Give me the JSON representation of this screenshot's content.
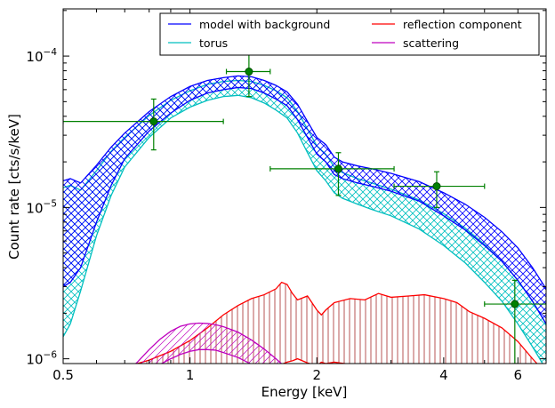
{
  "chart_data": {
    "type": "line",
    "xlabel": "Energy [keV]",
    "ylabel": "Count rate [cts/s/keV]",
    "xscale": "log",
    "yscale": "log",
    "xlim": [
      0.5,
      7.0
    ],
    "ylim": [
      9.3e-07,
      0.000205
    ],
    "x_ticks": [
      {
        "value": 0.5,
        "label": "0.5"
      },
      {
        "value": 1,
        "label": "1"
      },
      {
        "value": 2,
        "label": "2"
      },
      {
        "value": 4,
        "label": "4"
      },
      {
        "value": 6,
        "label": "6"
      }
    ],
    "y_ticks": [
      {
        "value": 1e-06,
        "base": "10",
        "exp": "−6"
      },
      {
        "value": 1e-05,
        "base": "10",
        "exp": "−5"
      },
      {
        "value": 0.0001,
        "base": "10",
        "exp": "−4"
      }
    ],
    "grid": false,
    "legend": {
      "placement": "top-right",
      "columns": 2,
      "entries": [
        {
          "label": "model with background",
          "color": "#0000ff"
        },
        {
          "label": "reflection component",
          "color": "#ff0000"
        },
        {
          "label": "torus",
          "color": "#00bfbf"
        },
        {
          "label": "scattering",
          "color": "#bf00bf"
        }
      ]
    },
    "colors": {
      "model": "#0000ff",
      "torus": "#00bfbf",
      "reflection": "#ff0000",
      "reflection_hatch": "#a52a2a",
      "scattering": "#bf00bf",
      "data": "#008000",
      "data_edge": "#004d00"
    },
    "data_points": [
      {
        "x": 0.82,
        "xlo": 0.5,
        "xhi": 1.2,
        "y": 3.7e-05,
        "ylo": 2.4e-05,
        "yhi": 5.2e-05
      },
      {
        "x": 1.38,
        "xlo": 1.22,
        "xhi": 1.55,
        "y": 7.9e-05,
        "ylo": 5.4e-05,
        "yhi": 0.000105
      },
      {
        "x": 2.25,
        "xlo": 1.55,
        "xhi": 3.05,
        "y": 1.8e-05,
        "ylo": 1.2e-05,
        "yhi": 2.3e-05
      },
      {
        "x": 3.85,
        "xlo": 3.05,
        "xhi": 5.0,
        "y": 1.38e-05,
        "ylo": 1e-05,
        "yhi": 1.72e-05
      },
      {
        "x": 5.9,
        "xlo": 5.0,
        "xhi": 7.0,
        "y": 2.3e-06,
        "ylo": 9.3e-07,
        "yhi": 3.3e-06
      }
    ],
    "series": [
      {
        "name": "model with background",
        "x": [
          0.5,
          0.52,
          0.55,
          0.6,
          0.65,
          0.7,
          0.8,
          0.9,
          1.0,
          1.1,
          1.2,
          1.3,
          1.4,
          1.5,
          1.6,
          1.7,
          1.8,
          1.9,
          2.0,
          2.1,
          2.2,
          2.3,
          2.5,
          2.7,
          3.0,
          3.5,
          4.0,
          4.5,
          5.0,
          5.5,
          6.0,
          6.5,
          7.0
        ],
        "lower": [
          3e-06,
          3.2e-06,
          4e-06,
          8e-06,
          1.4e-05,
          2.1e-05,
          3.2e-05,
          4.2e-05,
          5.1e-05,
          5.7e-05,
          6e-05,
          6.2e-05,
          6.1e-05,
          5.7e-05,
          5.2e-05,
          4.7e-05,
          3.8e-05,
          2.9e-05,
          2.25e-05,
          2e-05,
          1.65e-05,
          1.55e-05,
          1.45e-05,
          1.38e-05,
          1.28e-05,
          1.1e-05,
          8.8e-06,
          7.1e-06,
          5.6e-06,
          4.4e-06,
          3.3e-06,
          2.4e-06,
          1.7e-06
        ],
        "upper": [
          1.5e-05,
          1.55e-05,
          1.45e-05,
          1.9e-05,
          2.5e-05,
          3.1e-05,
          4.3e-05,
          5.4e-05,
          6.3e-05,
          6.9e-05,
          7.2e-05,
          7.4e-05,
          7.3e-05,
          6.9e-05,
          6.4e-05,
          5.8e-05,
          4.8e-05,
          3.7e-05,
          2.9e-05,
          2.6e-05,
          2.15e-05,
          2e-05,
          1.88e-05,
          1.8e-05,
          1.68e-05,
          1.48e-05,
          1.25e-05,
          1.05e-05,
          8.6e-06,
          6.9e-06,
          5.4e-06,
          4e-06,
          2.9e-06
        ]
      },
      {
        "name": "torus",
        "x": [
          0.5,
          0.52,
          0.55,
          0.6,
          0.65,
          0.7,
          0.8,
          0.9,
          1.0,
          1.1,
          1.2,
          1.3,
          1.4,
          1.5,
          1.6,
          1.7,
          1.8,
          1.9,
          2.0,
          2.1,
          2.2,
          2.3,
          2.5,
          2.7,
          3.0,
          3.5,
          4.0,
          4.5,
          5.0,
          5.5,
          6.0,
          6.5,
          7.0
        ],
        "lower": [
          1.4e-06,
          1.7e-06,
          2.8e-06,
          6.5e-06,
          1.2e-05,
          1.85e-05,
          2.9e-05,
          3.9e-05,
          4.6e-05,
          5.1e-05,
          5.4e-05,
          5.5e-05,
          5.3e-05,
          4.9e-05,
          4.4e-05,
          3.9e-05,
          3.1e-05,
          2.3e-05,
          1.75e-05,
          1.5e-05,
          1.25e-05,
          1.15e-05,
          1.05e-05,
          9.7e-06,
          8.8e-06,
          7.2e-06,
          5.6e-06,
          4.3e-06,
          3.2e-06,
          2.4e-06,
          1.7e-06,
          1.2e-06,
          8.5e-07
        ],
        "upper": [
          1.35e-05,
          1.4e-05,
          1.3e-05,
          1.75e-05,
          2.35e-05,
          2.9e-05,
          4.05e-05,
          5.1e-05,
          5.9e-05,
          6.5e-05,
          6.8e-05,
          6.9e-05,
          6.8e-05,
          6.4e-05,
          5.9e-05,
          5.3e-05,
          4.3e-05,
          3.3e-05,
          2.55e-05,
          2.25e-05,
          1.85e-05,
          1.7e-05,
          1.55e-05,
          1.45e-05,
          1.32e-05,
          1.12e-05,
          9.1e-06,
          7.3e-06,
          5.7e-06,
          4.4e-06,
          3.3e-06,
          2.4e-06,
          1.7e-06
        ]
      },
      {
        "name": "reflection component",
        "x": [
          0.75,
          0.8,
          0.9,
          1.0,
          1.1,
          1.2,
          1.3,
          1.4,
          1.5,
          1.6,
          1.65,
          1.7,
          1.75,
          1.8,
          1.9,
          2.0,
          2.05,
          2.1,
          2.2,
          2.4,
          2.6,
          2.8,
          3.0,
          3.3,
          3.6,
          4.0,
          4.3,
          4.6,
          5.0,
          5.5,
          6.0,
          6.5,
          7.0
        ],
        "upper": [
          9.3e-07,
          9.8e-07,
          1.12e-06,
          1.32e-06,
          1.6e-06,
          1.95e-06,
          2.25e-06,
          2.5e-06,
          2.65e-06,
          2.9e-06,
          3.2e-06,
          3.1e-06,
          2.7e-06,
          2.45e-06,
          2.6e-06,
          2.1e-06,
          1.95e-06,
          2.1e-06,
          2.35e-06,
          2.5e-06,
          2.45e-06,
          2.7e-06,
          2.55e-06,
          2.6e-06,
          2.65e-06,
          2.5e-06,
          2.35e-06,
          2.05e-06,
          1.85e-06,
          1.6e-06,
          1.3e-06,
          1e-06,
          8e-07
        ],
        "lower": [
          8e-07,
          8.2e-07,
          8.5e-07,
          8.6e-07,
          8.7e-07,
          8.8e-07,
          8.9e-07,
          9e-07,
          9.1e-07,
          9.1e-07,
          9.2e-07,
          9.5e-07,
          9.7e-07,
          1e-06,
          9.4e-07,
          9e-07,
          9.5e-07,
          9.3e-07,
          9.5e-07,
          9.2e-07,
          9e-07,
          9.3e-07,
          9.1e-07,
          8.9e-07,
          8.8e-07,
          8.7e-07,
          8.5e-07,
          8.3e-07,
          8.1e-07,
          8e-07,
          7.9e-07,
          7.8e-07,
          7.7e-07
        ]
      },
      {
        "name": "scattering",
        "x": [
          0.7,
          0.75,
          0.8,
          0.85,
          0.9,
          0.95,
          1.0,
          1.05,
          1.1,
          1.15,
          1.2,
          1.3,
          1.4,
          1.5,
          1.6,
          1.7,
          1.8
        ],
        "upper": [
          8e-07,
          9.5e-07,
          1.15e-06,
          1.35e-06,
          1.52e-06,
          1.64e-06,
          1.7e-06,
          1.72e-06,
          1.71e-06,
          1.68e-06,
          1.63e-06,
          1.5e-06,
          1.33e-06,
          1.16e-06,
          1e-06,
          8.6e-07,
          7.5e-07
        ],
        "lower": [
          6.5e-07,
          7.2e-07,
          8.2e-07,
          9.2e-07,
          1e-06,
          1.07e-06,
          1.12e-06,
          1.15e-06,
          1.15e-06,
          1.14e-06,
          1.1e-06,
          1.02e-06,
          9.2e-07,
          8.2e-07,
          7.3e-07,
          6.5e-07,
          5.8e-07
        ]
      }
    ]
  }
}
